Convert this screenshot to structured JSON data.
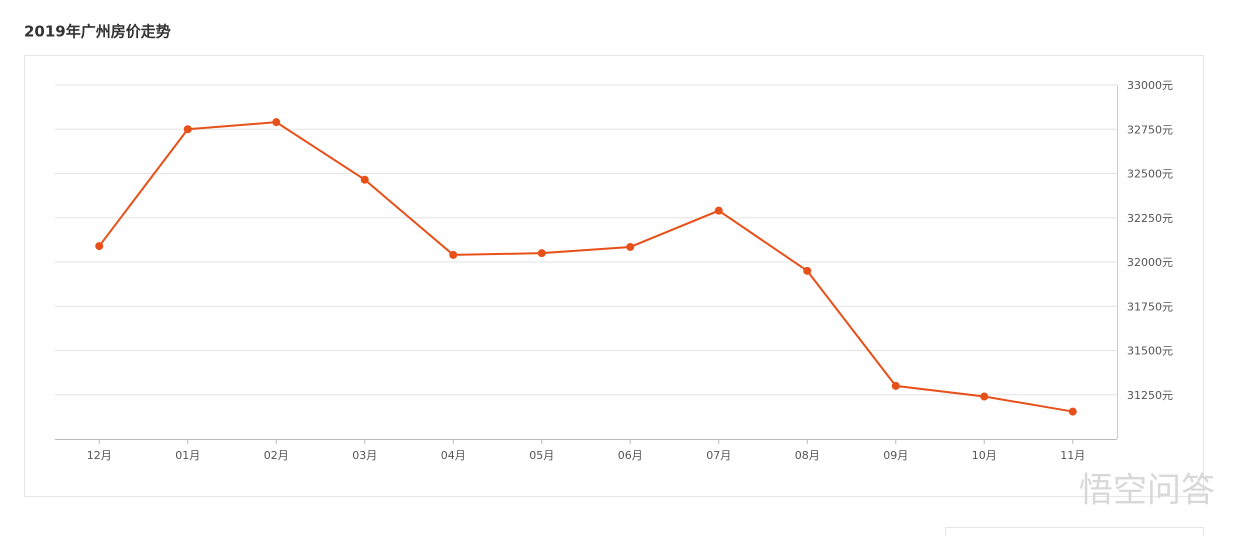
{
  "chart_data": {
    "type": "line",
    "title": "2019年广州房价走势",
    "categories": [
      "12月",
      "01月",
      "02月",
      "03月",
      "04月",
      "05月",
      "06月",
      "07月",
      "08月",
      "09月",
      "10月",
      "11月"
    ],
    "series": [
      {
        "color": "#e8501a",
        "values": [
          32090,
          32750,
          32790,
          32465,
          32040,
          32050,
          32085,
          32290,
          31950,
          31300,
          31240,
          31155
        ]
      }
    ],
    "ylim": [
      31000,
      33000
    ],
    "yticks": [
      {
        "value": 31250,
        "label": "31250元"
      },
      {
        "value": 31500,
        "label": "31500元"
      },
      {
        "value": 31750,
        "label": "31750元"
      },
      {
        "value": 32000,
        "label": "32000元"
      },
      {
        "value": 32250,
        "label": "32250元"
      },
      {
        "value": 32500,
        "label": "32500元"
      },
      {
        "value": 32750,
        "label": "32750元"
      },
      {
        "value": 33000,
        "label": "33000元"
      }
    ],
    "grid": true
  },
  "watermark": "悟空问答"
}
